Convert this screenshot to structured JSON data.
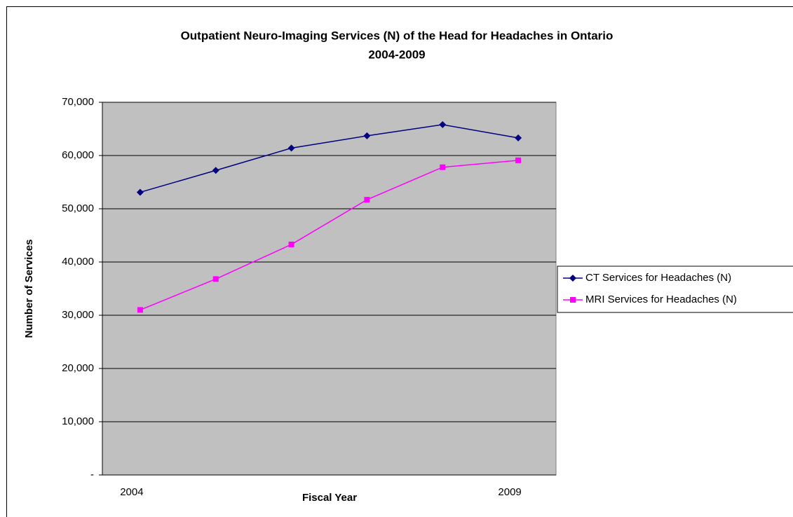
{
  "chart_data": {
    "type": "line",
    "title": "Outpatient Neuro-Imaging Services (N) of the Head for Headaches in Ontario",
    "subtitle": "2004-2009",
    "x_label": "Fiscal Year",
    "y_label": "Number of Services",
    "categories": [
      "2004",
      null,
      null,
      null,
      null,
      "2009"
    ],
    "series": [
      {
        "name": "CT Services for Headaches (N)",
        "color": "#000080",
        "marker": "diamond",
        "values": [
          53100,
          57200,
          61400,
          63700,
          65800,
          63300
        ]
      },
      {
        "name": "MRI Services for Headaches (N)",
        "color": "#ff00ff",
        "marker": "square",
        "values": [
          31000,
          36800,
          43300,
          51700,
          57800,
          59100
        ]
      }
    ],
    "ylim": [
      0,
      70000
    ],
    "yticks": [
      {
        "value": 0,
        "label": "-"
      },
      {
        "value": 10000,
        "label": "10,000"
      },
      {
        "value": 20000,
        "label": "20,000"
      },
      {
        "value": 30000,
        "label": "30,000"
      },
      {
        "value": 40000,
        "label": "40,000"
      },
      {
        "value": 50000,
        "label": "50,000"
      },
      {
        "value": 60000,
        "label": "60,000"
      },
      {
        "value": 70000,
        "label": "70,000"
      }
    ],
    "grid": true,
    "plot_background": "#c0c0c0",
    "legend": "right"
  }
}
